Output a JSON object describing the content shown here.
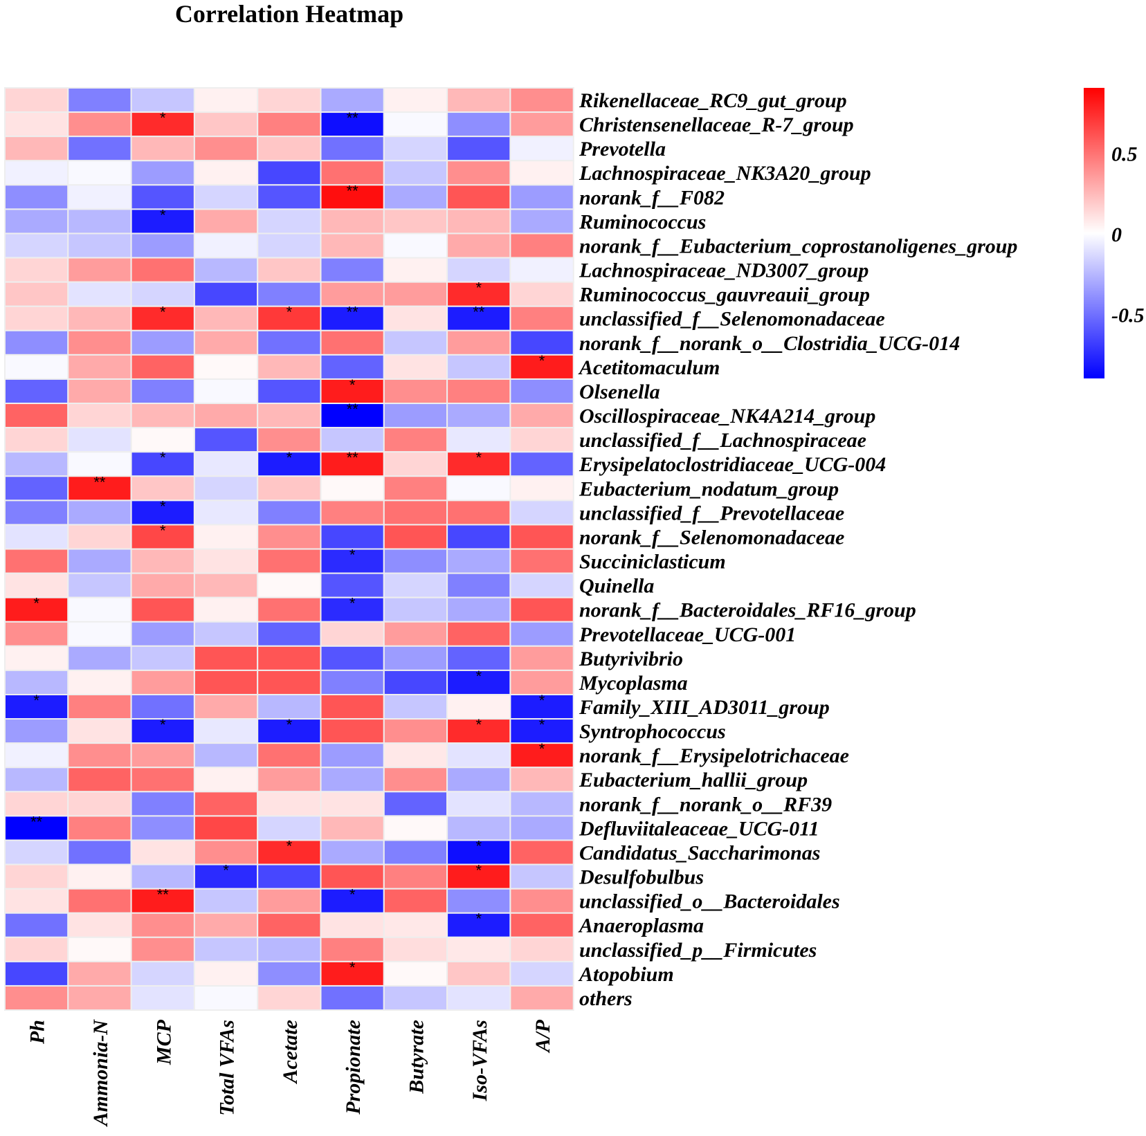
{
  "chart_data": {
    "type": "heatmap",
    "title": "Correlation Heatmap",
    "columns": [
      "Ph",
      "Ammonia-N",
      "MCP",
      "Total VFAs",
      "Acetate",
      "Propionate",
      "Butyrate",
      "Iso-VFAs",
      "A/P"
    ],
    "rows": [
      "Rikenellaceae_RC9_gut_group",
      "Christensenellaceae_R-7_group",
      "Prevotella",
      "Lachnospiraceae_NK3A20_group",
      "norank_f__F082",
      "Ruminococcus",
      "norank_f__Eubacterium_coprostanoligenes_group",
      "Lachnospiraceae_ND3007_group",
      "Ruminococcus_gauvreauii_group",
      "unclassified_f__Selenomonadaceae",
      "norank_f__norank_o__Clostridia_UCG-014",
      "Acetitomaculum",
      "Olsenella",
      "Oscillospiraceae_NK4A214_group",
      "unclassified_f__Lachnospiraceae",
      "Erysipelatoclostridiaceae_UCG-004",
      "Eubacterium_nodatum_group",
      "unclassified_f__Prevotellaceae",
      "norank_f__Selenomonadaceae",
      "Succiniclasticum",
      "Quinella",
      "norank_f__Bacteroidales_RF16_group",
      "Prevotellaceae_UCG-001",
      "Butyrivibrio",
      "Mycoplasma",
      "Family_XIII_AD3011_group",
      "Syntrophococcus",
      "norank_f__Erysipelotrichaceae",
      "Eubacterium_hallii_group",
      "norank_f__norank_o__RF39",
      "Defluviitaleaceae_UCG-011",
      "Candidatus_Saccharimonas",
      "Desulfobulbus",
      "unclassified_o__Bacteroidales",
      "Anaeroplasma",
      "unclassified_p__Firmicutes",
      "Atopobium",
      "others"
    ],
    "values": [
      [
        0.15,
        -0.45,
        -0.2,
        0.05,
        0.15,
        -0.3,
        0.05,
        0.25,
        0.4
      ],
      [
        0.1,
        0.4,
        0.75,
        0.2,
        0.45,
        -0.85,
        -0.02,
        -0.4,
        0.35
      ],
      [
        0.25,
        -0.5,
        0.25,
        0.4,
        0.2,
        -0.5,
        -0.15,
        -0.6,
        -0.05
      ],
      [
        -0.05,
        -0.02,
        -0.35,
        0.05,
        -0.65,
        0.5,
        -0.2,
        0.4,
        0.05
      ],
      [
        -0.4,
        -0.05,
        -0.6,
        -0.15,
        -0.6,
        0.85,
        -0.3,
        0.6,
        -0.35
      ],
      [
        -0.3,
        -0.25,
        -0.8,
        0.3,
        -0.15,
        0.25,
        0.2,
        0.25,
        -0.3
      ],
      [
        -0.15,
        -0.2,
        -0.35,
        -0.05,
        -0.15,
        0.25,
        -0.02,
        0.3,
        0.45
      ],
      [
        0.15,
        0.35,
        0.5,
        -0.25,
        0.2,
        -0.45,
        0.05,
        -0.15,
        -0.05
      ],
      [
        0.2,
        -0.1,
        -0.15,
        -0.65,
        -0.45,
        0.35,
        0.35,
        0.75,
        0.15
      ],
      [
        0.15,
        0.25,
        0.75,
        0.25,
        0.7,
        -0.8,
        0.1,
        -0.8,
        0.45
      ],
      [
        -0.4,
        0.4,
        -0.35,
        0.3,
        -0.5,
        0.5,
        -0.2,
        0.35,
        -0.65
      ],
      [
        -0.02,
        0.3,
        0.55,
        0.02,
        0.25,
        -0.55,
        0.1,
        -0.2,
        0.8
      ],
      [
        -0.55,
        0.3,
        -0.45,
        -0.02,
        -0.6,
        0.8,
        0.4,
        0.45,
        -0.4
      ],
      [
        0.55,
        0.15,
        0.25,
        0.3,
        0.25,
        -0.9,
        -0.35,
        -0.3,
        0.3
      ],
      [
        0.15,
        -0.1,
        0.02,
        -0.6,
        0.4,
        -0.2,
        0.45,
        -0.08,
        0.15
      ],
      [
        -0.25,
        -0.02,
        -0.65,
        -0.08,
        -0.8,
        0.8,
        0.15,
        0.75,
        -0.55
      ],
      [
        -0.55,
        0.8,
        0.2,
        -0.15,
        0.2,
        0.02,
        0.45,
        -0.02,
        0.05
      ],
      [
        -0.45,
        -0.3,
        -0.8,
        -0.08,
        -0.45,
        0.45,
        0.5,
        0.5,
        -0.15
      ],
      [
        -0.1,
        0.15,
        0.65,
        0.05,
        0.4,
        -0.65,
        0.6,
        -0.65,
        0.6
      ],
      [
        0.5,
        -0.3,
        0.25,
        0.1,
        0.5,
        -0.75,
        -0.4,
        -0.3,
        0.5
      ],
      [
        0.1,
        -0.2,
        0.3,
        0.25,
        0.02,
        -0.6,
        -0.15,
        -0.45,
        -0.15
      ],
      [
        0.8,
        -0.02,
        0.6,
        0.05,
        0.5,
        -0.75,
        -0.2,
        -0.3,
        0.6
      ],
      [
        0.4,
        -0.02,
        -0.35,
        -0.2,
        -0.55,
        0.15,
        0.35,
        0.55,
        -0.35
      ],
      [
        0.05,
        -0.3,
        -0.2,
        0.6,
        0.6,
        -0.6,
        -0.35,
        -0.55,
        0.35
      ],
      [
        -0.25,
        0.05,
        0.35,
        0.6,
        0.6,
        -0.45,
        -0.65,
        -0.8,
        0.35
      ],
      [
        -0.8,
        0.45,
        -0.5,
        0.3,
        -0.25,
        0.6,
        -0.2,
        0.05,
        -0.8
      ],
      [
        -0.35,
        0.1,
        -0.8,
        -0.08,
        -0.8,
        0.6,
        0.4,
        0.75,
        -0.8
      ],
      [
        -0.05,
        0.4,
        0.35,
        -0.25,
        0.5,
        -0.35,
        0.08,
        -0.1,
        0.8
      ],
      [
        -0.25,
        0.55,
        0.5,
        0.05,
        0.35,
        -0.3,
        0.4,
        -0.3,
        0.25
      ],
      [
        0.15,
        0.15,
        -0.45,
        0.55,
        0.1,
        0.1,
        -0.55,
        -0.1,
        -0.25
      ],
      [
        -0.9,
        0.45,
        -0.4,
        0.65,
        -0.15,
        0.25,
        0.02,
        -0.25,
        -0.3
      ],
      [
        -0.15,
        -0.5,
        0.1,
        0.4,
        0.75,
        -0.3,
        -0.45,
        -0.85,
        0.55
      ],
      [
        0.15,
        0.05,
        -0.25,
        -0.75,
        -0.65,
        0.6,
        0.45,
        0.8,
        -0.2
      ],
      [
        0.1,
        0.5,
        0.8,
        -0.2,
        0.35,
        -0.8,
        0.55,
        -0.4,
        0.4
      ],
      [
        -0.5,
        0.1,
        0.4,
        0.3,
        0.55,
        0.1,
        0.08,
        -0.8,
        0.55
      ],
      [
        0.15,
        0.02,
        0.4,
        -0.2,
        -0.25,
        0.45,
        0.12,
        0.08,
        0.15
      ],
      [
        -0.65,
        0.3,
        -0.15,
        0.05,
        -0.4,
        0.8,
        0.02,
        0.2,
        -0.15
      ],
      [
        0.4,
        0.3,
        -0.1,
        -0.02,
        0.15,
        -0.5,
        -0.2,
        -0.1,
        0.3
      ]
    ],
    "significance": [
      [
        "",
        "",
        "",
        "",
        "",
        "",
        "",
        "",
        ""
      ],
      [
        "",
        "",
        "*",
        "",
        "",
        "**",
        "",
        "",
        ""
      ],
      [
        "",
        "",
        "",
        "",
        "",
        "",
        "",
        "",
        ""
      ],
      [
        "",
        "",
        "",
        "",
        "",
        "",
        "",
        "",
        ""
      ],
      [
        "",
        "",
        "",
        "",
        "",
        "**",
        "",
        "",
        ""
      ],
      [
        "",
        "",
        "*",
        "",
        "",
        "",
        "",
        "",
        ""
      ],
      [
        "",
        "",
        "",
        "",
        "",
        "",
        "",
        "",
        ""
      ],
      [
        "",
        "",
        "",
        "",
        "",
        "",
        "",
        "",
        ""
      ],
      [
        "",
        "",
        "",
        "",
        "",
        "",
        "",
        "*",
        ""
      ],
      [
        "",
        "",
        "*",
        "",
        "*",
        "**",
        "",
        "**",
        ""
      ],
      [
        "",
        "",
        "",
        "",
        "",
        "",
        "",
        "",
        ""
      ],
      [
        "",
        "",
        "",
        "",
        "",
        "",
        "",
        "",
        "*"
      ],
      [
        "",
        "",
        "",
        "",
        "",
        "*",
        "",
        "",
        ""
      ],
      [
        "",
        "",
        "",
        "",
        "",
        "**",
        "",
        "",
        ""
      ],
      [
        "",
        "",
        "",
        "",
        "",
        "",
        "",
        "",
        ""
      ],
      [
        "",
        "",
        "*",
        "",
        "*",
        "**",
        "",
        "*",
        ""
      ],
      [
        "",
        "**",
        "",
        "",
        "",
        "",
        "",
        "",
        ""
      ],
      [
        "",
        "",
        "*",
        "",
        "",
        "",
        "",
        "",
        ""
      ],
      [
        "",
        "",
        "*",
        "",
        "",
        "",
        "",
        "",
        ""
      ],
      [
        "",
        "",
        "",
        "",
        "",
        "*",
        "",
        "",
        ""
      ],
      [
        "",
        "",
        "",
        "",
        "",
        "",
        "",
        "",
        ""
      ],
      [
        "*",
        "",
        "",
        "",
        "",
        "*",
        "",
        "",
        ""
      ],
      [
        "",
        "",
        "",
        "",
        "",
        "",
        "",
        "",
        ""
      ],
      [
        "",
        "",
        "",
        "",
        "",
        "",
        "",
        "",
        ""
      ],
      [
        "",
        "",
        "",
        "",
        "",
        "",
        "",
        "*",
        ""
      ],
      [
        "*",
        "",
        "",
        "",
        "",
        "",
        "",
        "",
        "*"
      ],
      [
        "",
        "",
        "*",
        "",
        "*",
        "",
        "",
        "*",
        "*"
      ],
      [
        "",
        "",
        "",
        "",
        "",
        "",
        "",
        "",
        "*"
      ],
      [
        "",
        "",
        "",
        "",
        "",
        "",
        "",
        "",
        ""
      ],
      [
        "",
        "",
        "",
        "",
        "",
        "",
        "",
        "",
        ""
      ],
      [
        "**",
        "",
        "",
        "",
        "",
        "",
        "",
        "",
        ""
      ],
      [
        "",
        "",
        "",
        "",
        "*",
        "",
        "",
        "*",
        ""
      ],
      [
        "",
        "",
        "",
        "*",
        "",
        "",
        "",
        "*",
        ""
      ],
      [
        "",
        "",
        "**",
        "",
        "",
        "*",
        "",
        "",
        ""
      ],
      [
        "",
        "",
        "",
        "",
        "",
        "",
        "",
        "*",
        ""
      ],
      [
        "",
        "",
        "",
        "",
        "",
        "",
        "",
        "",
        ""
      ],
      [
        "",
        "",
        "",
        "",
        "",
        "*",
        "",
        "",
        ""
      ],
      [
        "",
        "",
        "",
        "",
        "",
        "",
        "",
        "",
        ""
      ]
    ],
    "color_scale": {
      "min": -0.9,
      "max": 0.9,
      "low_color": "#0000ff",
      "mid_color": "#ffffff",
      "high_color": "#ff0000"
    },
    "colorbar_ticks": [
      {
        "value": 0.5,
        "label": "0.5"
      },
      {
        "value": 0,
        "label": "0"
      },
      {
        "value": -0.5,
        "label": "-0.5"
      }
    ],
    "cell_border_color": "#eeeeee"
  }
}
